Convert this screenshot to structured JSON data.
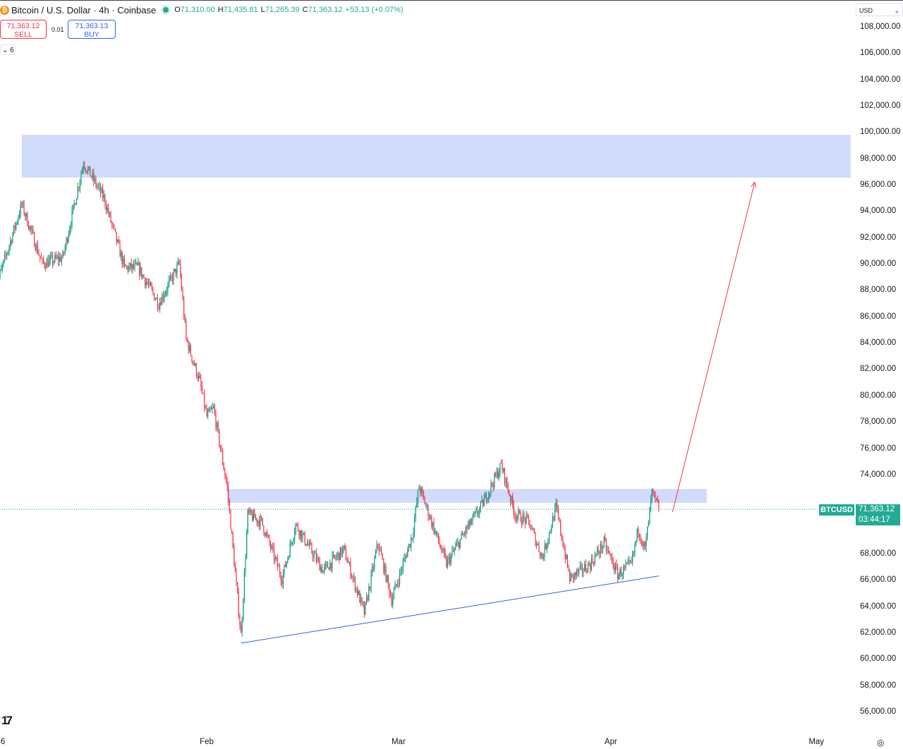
{
  "header": {
    "title": "Bitcoin / U.S. Dollar · 4h · Coinbase",
    "coin_icon": "bitcoin-icon",
    "open_label": "O",
    "open": "71,310.00",
    "high_label": "H",
    "high": "71,435.81",
    "low_label": "L",
    "low": "71,265.39",
    "close_label": "C",
    "close": "71,363.12",
    "change": "+53.13 (+0.07%)"
  },
  "trade": {
    "sell_price": "71,363.12",
    "sell_label": "SELL",
    "spread": "0.01",
    "buy_price": "71,363.13",
    "buy_label": "BUY"
  },
  "indicators_toggle": "6",
  "currency": "USD",
  "price_tag": {
    "symbol": "BTCUSD",
    "price": "71,363.12",
    "countdown": "03:44:17"
  },
  "colors": {
    "up": "#089981",
    "down": "#f23645",
    "zone": "#d1dbfb",
    "trendline": "#3a5bd9",
    "arrow": "#f23645",
    "tag": "#22ab94"
  },
  "chart_data": {
    "type": "candlestick",
    "interval": "4h",
    "ylim": [
      55000,
      109000
    ],
    "y_ticks": [
      "108,000.00",
      "106,000.00",
      "104,000.00",
      "102,000.00",
      "100,000.00",
      "98,000.00",
      "96,000.00",
      "94,000.00",
      "92,000.00",
      "90,000.00",
      "88,000.00",
      "86,000.00",
      "84,000.00",
      "82,000.00",
      "80,000.00",
      "78,000.00",
      "76,000.00",
      "74,000.00",
      "72,000.00",
      "70,000.00",
      "68,000.00",
      "66,000.00",
      "64,000.00",
      "62,000.00",
      "60,000.00",
      "58,000.00",
      "56,000.00"
    ],
    "x_ticks": [
      {
        "label": "6",
        "date": "2026-01-01"
      },
      {
        "label": "Feb",
        "date": "2026-02-01"
      },
      {
        "label": "Mar",
        "date": "2026-03-01"
      },
      {
        "label": "Apr",
        "date": "2026-04-01"
      },
      {
        "label": "May",
        "date": "2026-05-01"
      }
    ],
    "price_path": [
      [
        "2026-01-01",
        87800
      ],
      [
        "2026-01-05",
        94500
      ],
      [
        "2026-01-08",
        90000
      ],
      [
        "2026-01-11",
        90500
      ],
      [
        "2026-01-14",
        97700
      ],
      [
        "2026-01-17",
        95000
      ],
      [
        "2026-01-20",
        89700
      ],
      [
        "2026-01-22",
        89700
      ],
      [
        "2026-01-25",
        87000
      ],
      [
        "2026-01-28",
        90000
      ],
      [
        "2026-01-29",
        84300
      ],
      [
        "2026-01-31",
        81000
      ],
      [
        "2026-02-01",
        78400
      ],
      [
        "2026-02-02",
        79000
      ],
      [
        "2026-02-04",
        73000
      ],
      [
        "2026-02-06",
        61800
      ],
      [
        "2026-02-07",
        71000
      ],
      [
        "2026-02-09",
        70400
      ],
      [
        "2026-02-12",
        66100
      ],
      [
        "2026-02-14",
        70200
      ],
      [
        "2026-02-18",
        66700
      ],
      [
        "2026-02-21",
        68300
      ],
      [
        "2026-02-24",
        63500
      ],
      [
        "2026-02-26",
        68800
      ],
      [
        "2026-02-28",
        64500
      ],
      [
        "2026-03-03",
        69400
      ],
      [
        "2026-03-04",
        73100
      ],
      [
        "2026-03-08",
        67200
      ],
      [
        "2026-03-11",
        69900
      ],
      [
        "2026-03-13",
        71500
      ],
      [
        "2026-03-16",
        74700
      ],
      [
        "2026-03-18",
        71000
      ],
      [
        "2026-03-20",
        70400
      ],
      [
        "2026-03-22",
        67700
      ],
      [
        "2026-03-24",
        71500
      ],
      [
        "2026-03-26",
        66100
      ],
      [
        "2026-03-29",
        67200
      ],
      [
        "2026-03-31",
        68800
      ],
      [
        "2026-04-02",
        66400
      ],
      [
        "2026-04-04",
        67200
      ],
      [
        "2026-04-05",
        69900
      ],
      [
        "2026-04-06",
        68300
      ],
      [
        "2026-04-07",
        72600
      ],
      [
        "2026-04-08",
        71363.12
      ]
    ],
    "last_price": 71363.12,
    "zones": [
      {
        "from": "2026-01-05",
        "to": "2026-05-06",
        "top": 99800,
        "bottom": 96550
      },
      {
        "from": "2026-02-04",
        "to": "2026-04-15",
        "top": 72900,
        "bottom": 71850
      }
    ],
    "trendline": {
      "from": [
        "2026-02-06",
        61200
      ],
      "to": [
        "2026-04-08",
        66300
      ]
    },
    "arrow": {
      "from": [
        "2026-04-10",
        71150
      ],
      "to": [
        "2026-04-22",
        96200
      ]
    }
  }
}
